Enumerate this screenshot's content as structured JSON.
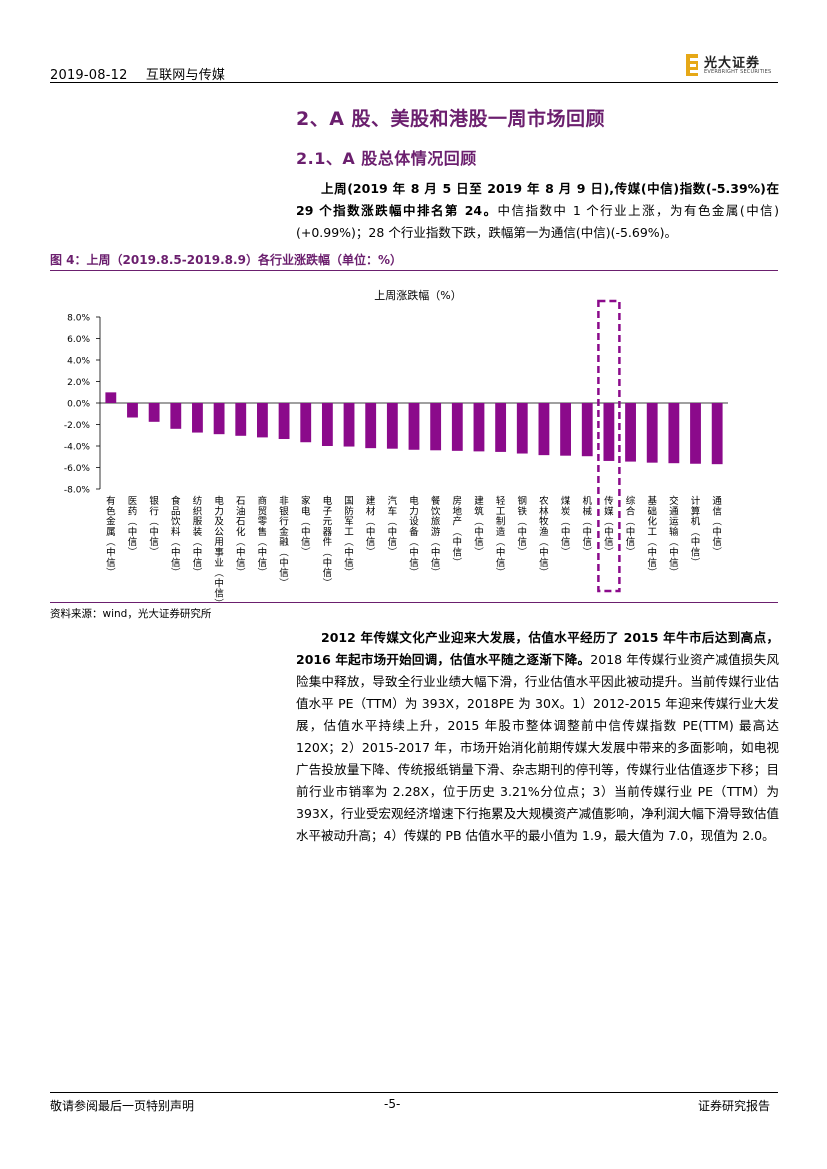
{
  "header": {
    "date": "2019-08-12",
    "category": "互联网与传媒",
    "logo_cn": "光大证券",
    "logo_en": "EVERBRIGHT SECURITIES",
    "brand_color": "#e6a817"
  },
  "section": {
    "h2": "2、A 股、美股和港股一周市场回顾",
    "h3": "2.1、A 股总体情况回顾"
  },
  "para1": {
    "bold": "上周(2019 年 8 月 5 日至 2019 年 8 月 9 日),传媒(中信)指数(-5.39%)在 29 个指数涨跌幅中排名第 24。",
    "rest": "中信指数中 1 个行业上涨，为有色金属(中信)(+0.99%)；28 个行业指数下跌，跌幅第一为通信(中信)(-5.69%)。"
  },
  "figure": {
    "title": "图 4：上周（2019.8.5-2019.8.9）各行业涨跌幅（单位：%）",
    "source": "资料来源：wind，光大证券研究所"
  },
  "chart_data": {
    "type": "bar",
    "title": "上周涨跌幅（%）",
    "ylim": [
      -8,
      8
    ],
    "yticks": [
      "8.0%",
      "6.0%",
      "4.0%",
      "2.0%",
      "0.0%",
      "-2.0%",
      "-4.0%",
      "-6.0%",
      "-8.0%"
    ],
    "ytick_values": [
      8,
      6,
      4,
      2,
      0,
      -2,
      -4,
      -6,
      -8
    ],
    "categories": [
      "有色金属(中信)",
      "医药(中信)",
      "银行(中信)",
      "食品饮料(中信)",
      "纺织服装(中信)",
      "电力及公用事业(中信)",
      "石油石化(中信)",
      "商贸零售(中信)",
      "非银行金融(中信)",
      "家电(中信)",
      "电子元器件(中信)",
      "国防军工(中信)",
      "建材(中信)",
      "汽车(中信)",
      "电力设备(中信)",
      "餐饮旅游(中信)",
      "房地产(中信)",
      "建筑(中信)",
      "轻工制造(中信)",
      "钢铁(中信)",
      "农林牧渔(中信)",
      "煤炭(中信)",
      "机械(中信)",
      "传媒(中信)",
      "综合(中信)",
      "基础化工(中信)",
      "交通运输(中信)",
      "计算机(中信)",
      "通信(中信)"
    ],
    "values": [
      0.99,
      -1.35,
      -1.75,
      -2.4,
      -2.75,
      -2.9,
      -3.05,
      -3.2,
      -3.35,
      -3.65,
      -4.0,
      -4.05,
      -4.2,
      -4.25,
      -4.35,
      -4.4,
      -4.45,
      -4.5,
      -4.55,
      -4.7,
      -4.85,
      -4.9,
      -4.95,
      -5.39,
      -5.45,
      -5.55,
      -5.6,
      -5.65,
      -5.69
    ],
    "highlight_index": 23,
    "bar_color": "#8b0a8b",
    "grid": false,
    "legend": "none"
  },
  "para2": {
    "bold": "2012 年传媒文化产业迎来大发展，估值水平经历了 2015 年牛市后达到高点，2016 年起市场开始回调，估值水平随之逐渐下降。",
    "rest": "2018 年传媒行业资产减值损失风险集中释放，导致全行业业绩大幅下滑，行业估值水平因此被动提升。当前传媒行业估值水平 PE（TTM）为 393X，2018PE 为 30X。1）2012-2015 年迎来传媒行业大发展，估值水平持续上升，2015 年股市整体调整前中信传媒指数 PE(TTM) 最高达 120X；2）2015-2017 年，市场开始消化前期传媒大发展中带来的多面影响，如电视广告投放量下降、传统报纸销量下滑、杂志期刊的停刊等，传媒行业估值逐步下移；目前行业市销率为 2.28X，位于历史 3.21%分位点；3）当前传媒行业 PE（TTM）为 393X，行业受宏观经济增速下行拖累及大规模资产减值影响，净利润大幅下滑导致估值水平被动升高；4）传媒的 PB 估值水平的最小值为 1.9，最大值为 7.0，现值为 2.0。"
  },
  "footer": {
    "left": "敬请参阅最后一页特别声明",
    "center": "-5-",
    "right": "证券研究报告"
  }
}
